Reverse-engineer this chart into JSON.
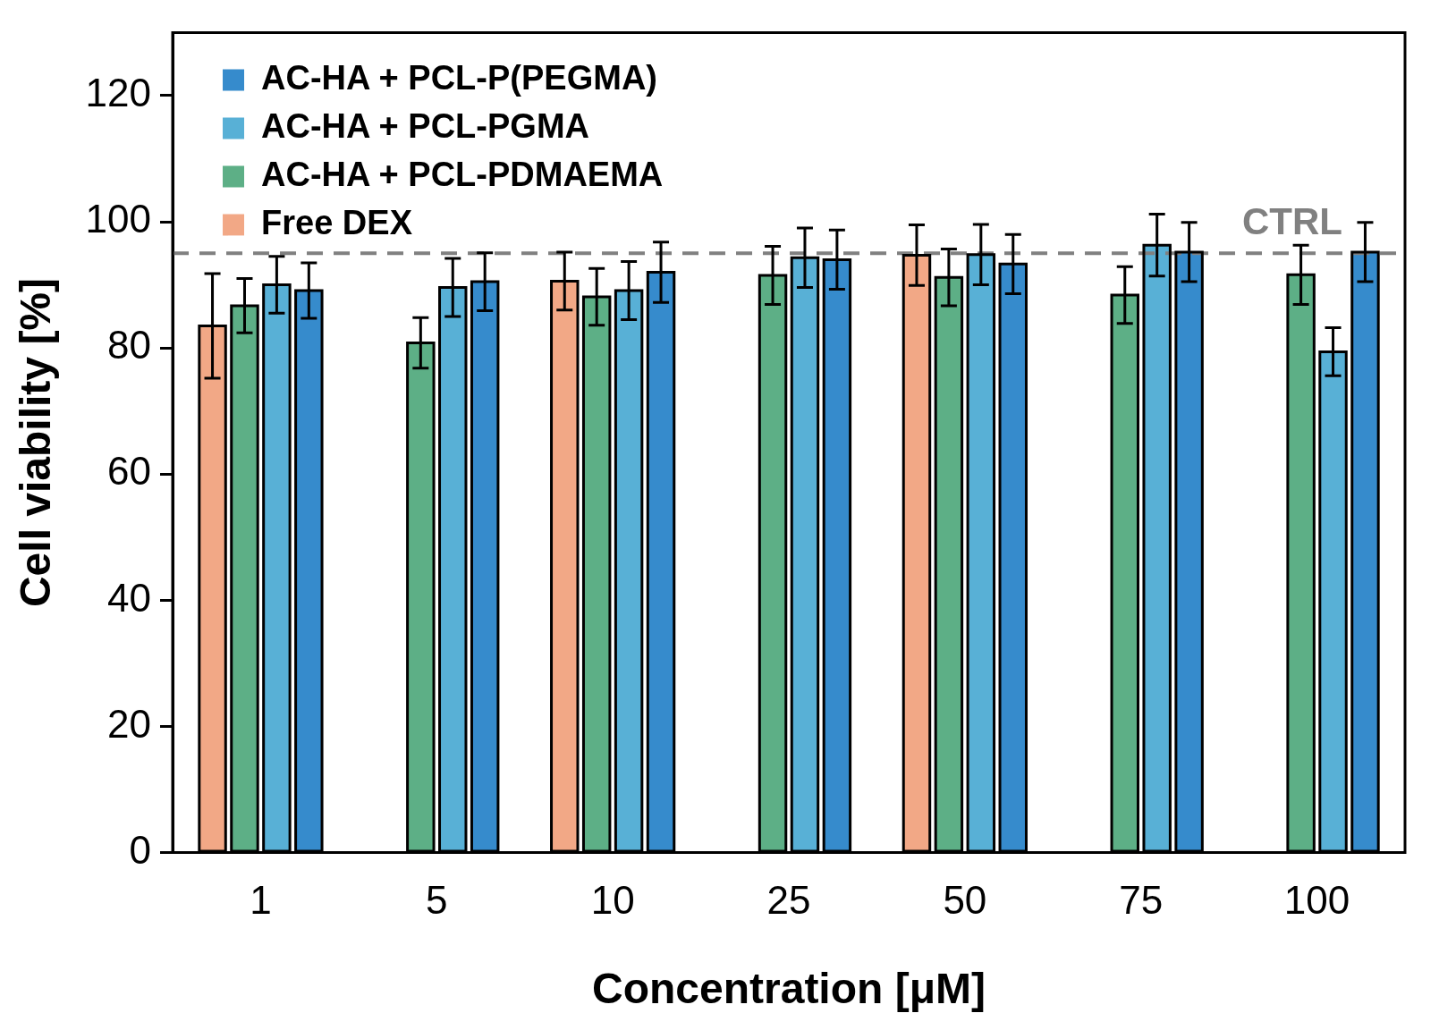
{
  "chart_data": {
    "type": "bar",
    "xlabel": "Concentration [μM]",
    "ylabel": "Cell viability [%]",
    "categories": [
      "1",
      "5",
      "10",
      "25",
      "50",
      "75",
      "100"
    ],
    "series": [
      {
        "name": "Free DEX",
        "color": "#f2a886",
        "values": [
          83.5,
          null,
          90.6,
          null,
          94.7,
          null,
          null
        ],
        "errors": [
          8.3,
          null,
          4.6,
          null,
          4.8,
          null,
          null
        ]
      },
      {
        "name": "AC-HA + PCL-PDMAEMA",
        "color": "#5daf86",
        "values": [
          86.7,
          80.8,
          88.1,
          91.5,
          91.2,
          88.4,
          91.6
        ],
        "errors": [
          4.3,
          4.0,
          4.5,
          4.6,
          4.5,
          4.5,
          4.7
        ]
      },
      {
        "name": "AC-HA + PCL-PGMA",
        "color": "#58b0d6",
        "values": [
          90.0,
          89.6,
          89.1,
          94.3,
          94.8,
          96.3,
          79.4
        ],
        "errors": [
          4.5,
          4.6,
          4.6,
          4.7,
          4.8,
          4.9,
          3.8
        ]
      },
      {
        "name": "AC-HA + PCL-P(PEGMA)",
        "color": "#368bcc",
        "values": [
          89.1,
          90.5,
          92.0,
          94.0,
          93.3,
          95.2,
          95.2
        ],
        "errors": [
          4.4,
          4.6,
          4.8,
          4.7,
          4.7,
          4.7,
          4.7
        ]
      }
    ],
    "ylim": [
      0,
      130
    ],
    "yticks": [
      0,
      20,
      40,
      60,
      80,
      100,
      120
    ],
    "grid": false,
    "legend": "top left",
    "ref_lines": [
      {
        "axis": "y",
        "value": 95,
        "label": "CTRL",
        "color": "#808080",
        "line_style": "dashed"
      }
    ]
  }
}
